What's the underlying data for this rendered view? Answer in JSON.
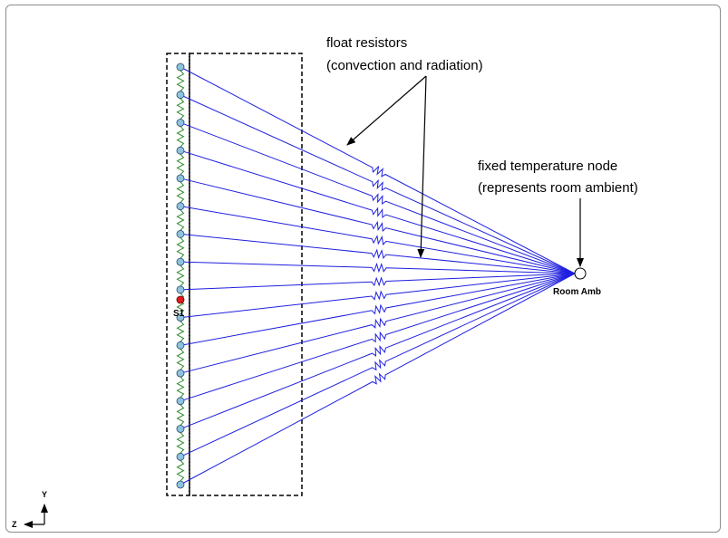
{
  "diagram": {
    "labels": {
      "float_title_line1": "float resistors",
      "float_title_line2": "(convection and radiation)",
      "fixed_title_line1": "fixed temperature node",
      "fixed_title_line2": "(represents room ambient)",
      "room_node": "Room Amb",
      "sensor_node": "S1",
      "axis_y": "Y",
      "axis_z": "Z"
    },
    "colors": {
      "float_line": "#1f1fe0",
      "chain_resistor": "#2e8b2e",
      "node_fill": "#8cc3e0",
      "sensor_fill": "#e21b1b",
      "arrow": "#000000"
    },
    "node_count": 16
  }
}
